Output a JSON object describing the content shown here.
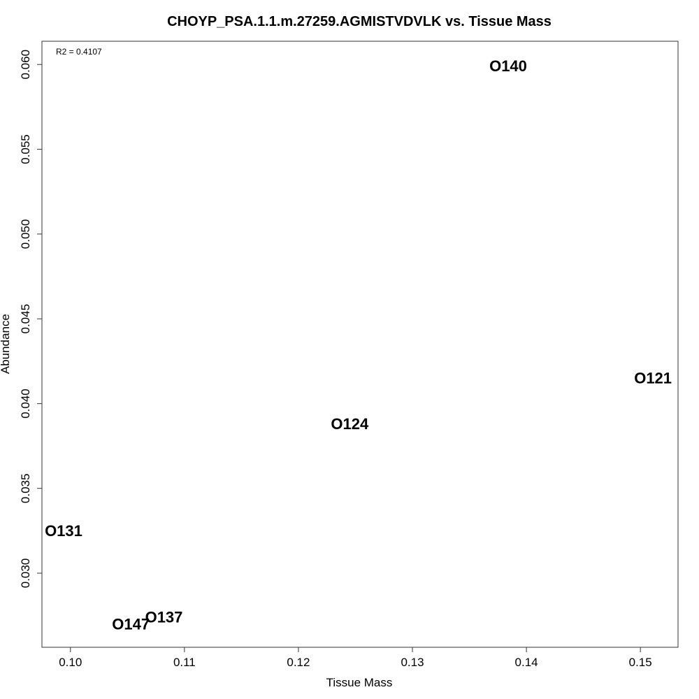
{
  "chart_data": {
    "type": "scatter",
    "title": "CHOYP_PSA.1.1.m.27259.AGMISTVDVLK vs. Tissue Mass",
    "xlabel": "Tissue Mass",
    "ylabel": "Abundance",
    "annotation": "R2 = 0.4107",
    "xlim": [
      0.0975,
      0.1533
    ],
    "ylim": [
      0.02563,
      0.06137
    ],
    "x_ticks": [
      0.1,
      0.11,
      0.12,
      0.13,
      0.14,
      0.15
    ],
    "x_tick_labels": [
      "0.10",
      "0.11",
      "0.12",
      "0.13",
      "0.14",
      "0.15"
    ],
    "y_ticks": [
      0.03,
      0.035,
      0.04,
      0.045,
      0.05,
      0.055,
      0.06
    ],
    "y_tick_labels": [
      "0.030",
      "0.035",
      "0.040",
      "0.045",
      "0.050",
      "0.055",
      "0.060"
    ],
    "grid": false,
    "points": [
      {
        "label": "O140",
        "x": 0.1384,
        "y": 0.0599
      },
      {
        "label": "O121",
        "x": 0.1511,
        "y": 0.0415
      },
      {
        "label": "O124",
        "x": 0.1245,
        "y": 0.0388
      },
      {
        "label": "O131",
        "x": 0.0994,
        "y": 0.0325
      },
      {
        "label": "O137",
        "x": 0.1082,
        "y": 0.0274
      },
      {
        "label": "O147",
        "x": 0.1053,
        "y": 0.027
      }
    ]
  }
}
